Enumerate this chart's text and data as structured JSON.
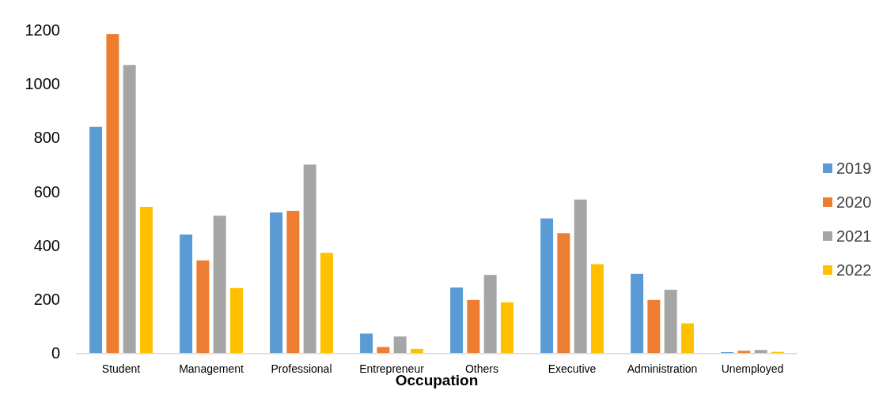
{
  "chart_data": {
    "type": "bar",
    "xlabel": "Occupation",
    "categories": [
      "Student",
      "Management",
      "Professional",
      "Entrepreneur",
      "Others",
      "Executive",
      "Administration",
      "Unemployed"
    ],
    "series": [
      {
        "name": "2019",
        "color": "#5b9bd5",
        "values": [
          840,
          440,
          522,
          72,
          243,
          500,
          294,
          3
        ]
      },
      {
        "name": "2020",
        "color": "#ed7d31",
        "values": [
          1185,
          344,
          528,
          22,
          197,
          445,
          197,
          8
        ]
      },
      {
        "name": "2021",
        "color": "#a5a5a5",
        "values": [
          1070,
          510,
          700,
          61,
          290,
          570,
          235,
          11
        ]
      },
      {
        "name": "2022",
        "color": "#ffc000",
        "values": [
          543,
          241,
          372,
          15,
          188,
          330,
          110,
          4
        ]
      }
    ],
    "ylim": [
      0,
      1200
    ],
    "yticks": [
      0,
      200,
      400,
      600,
      800,
      1000,
      1200
    ],
    "grid": false,
    "legend": "right"
  }
}
